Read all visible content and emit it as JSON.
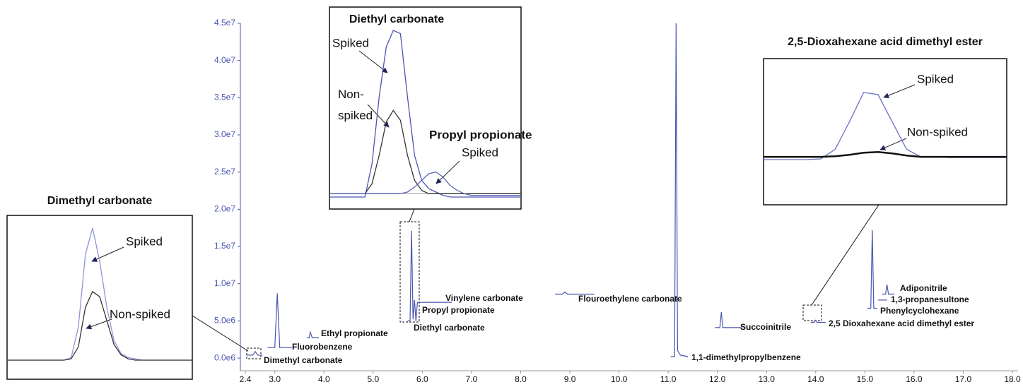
{
  "chart_data": [
    {
      "type": "line",
      "x": [
        2.42,
        2.55,
        2.6,
        2.65,
        2.75,
        2.8,
        2.85,
        3.0,
        3.05,
        3.1,
        3.35,
        3.5,
        3.65,
        3.7,
        3.72,
        3.76,
        3.9,
        4.5,
        5.7,
        5.75,
        5.78,
        5.81,
        5.84,
        5.87,
        5.9,
        6.0,
        6.6,
        7.5,
        8.7,
        8.85,
        8.9,
        8.95,
        9.5,
        10.0,
        11.05,
        11.13,
        11.16,
        11.19,
        11.25,
        11.4,
        11.8,
        11.95,
        12.05,
        12.08,
        12.11,
        12.5,
        13.0,
        13.9,
        13.97,
        14.0,
        14.03,
        14.2,
        14.6,
        15.05,
        15.12,
        15.15,
        15.18,
        15.25,
        15.26,
        15.27,
        15.45,
        15.46,
        15.35,
        15.42,
        15.45,
        15.48,
        15.6
      ],
      "series": [
        {
          "color": "#4a55b0",
          "values": [
            400000,
            400000,
            900000,
            400000,
            400000,
            null,
            1400000,
            1400000,
            8700000,
            1400000,
            1400000,
            null,
            2750000,
            2750000,
            3500000,
            2750000,
            2750000,
            null,
            5000000,
            5000000,
            17100000,
            5200000,
            7800000,
            5000000,
            7500000,
            7500000,
            7500000,
            null,
            8600000,
            8600000,
            8900000,
            8600000,
            8600000,
            null,
            200000,
            200000,
            45000000,
            1000000,
            400000,
            200000,
            null,
            4100000,
            4100000,
            6200000,
            4100000,
            4100000,
            null,
            4800000,
            4800000,
            5100000,
            4800000,
            4800000,
            null,
            6700000,
            6700000,
            17200000,
            6700000,
            6700000,
            null,
            7800000,
            7800000,
            null,
            8600000,
            8600000,
            9900000,
            8600000,
            8600000
          ]
        }
      ],
      "xlim": [
        2.4,
        18.0
      ],
      "xticks": [
        2.4,
        {
          "value": 3,
          "label": "3.0"
        },
        {
          "value": 4,
          "label": "4.0"
        },
        {
          "value": 5,
          "label": "5.0"
        },
        {
          "value": 6,
          "label": "6.0"
        },
        {
          "value": 7,
          "label": "7.0"
        },
        {
          "value": 8,
          "label": "8.0"
        },
        {
          "value": 9,
          "label": "9.0"
        },
        {
          "value": 10,
          "label": "10.0"
        },
        {
          "value": 11,
          "label": "11.0"
        },
        {
          "value": 12,
          "label": "12.0"
        },
        {
          "value": 13,
          "label": "13.0"
        },
        {
          "value": 14,
          "label": "14.0"
        },
        {
          "value": 15,
          "label": "15.0"
        },
        {
          "value": 16,
          "label": "16.0"
        },
        {
          "value": 17,
          "label": "17.0"
        },
        {
          "value": 18,
          "label": "18.0"
        }
      ],
      "ylim": [
        -1700000,
        45000000
      ],
      "yticks": [
        {
          "value": 0,
          "label": "0.0e6"
        },
        {
          "value": 5000000,
          "label": "5.0e6"
        },
        {
          "value": 10000000,
          "label": "1.0e7"
        },
        {
          "value": 15000000,
          "label": "1.5e7"
        },
        {
          "value": 20000000,
          "label": "2.0e7"
        },
        {
          "value": 25000000,
          "label": "2.5e7"
        },
        {
          "value": 30000000,
          "label": "3.0e7"
        },
        {
          "value": 35000000,
          "label": "3.5e7"
        },
        {
          "value": 40000000,
          "label": "4.0e7"
        },
        {
          "value": 45000000,
          "label": "4.5e7"
        }
      ],
      "annotations": [
        "Dimethyl carbonate",
        "Fluorobenzene",
        "Ethyl propionate",
        "Vinylene carbonate",
        "Propyl propionate",
        "Diethyl carbonate",
        "Flouroethylene carbonate",
        "1,1-dimethylpropylbenzene",
        "Succoinitrile",
        "2,5 Dioxahexane acid dimethyl ester",
        "Adiponitrile",
        "1,3-propanesultone",
        "Phenylcyclohexane"
      ]
    },
    {
      "type": "line",
      "title": "Dimethyl carbonate",
      "series": [
        {
          "name": "Spiked",
          "color": "#8e93d6",
          "values": [
            0,
            0,
            0,
            0,
            0,
            0,
            0,
            0,
            0,
            2,
            25,
            80,
            100,
            75,
            40,
            15,
            5,
            2,
            1,
            0,
            0,
            0,
            0,
            0,
            0,
            0,
            0
          ]
        },
        {
          "name": "Non-spiked",
          "color": "#333333",
          "values": [
            0,
            0,
            0,
            0,
            0,
            0,
            0,
            0,
            0,
            1,
            10,
            40,
            52,
            48,
            30,
            12,
            4,
            1,
            0,
            0,
            0,
            0,
            0,
            0,
            0,
            0,
            0
          ]
        }
      ]
    },
    {
      "type": "line",
      "title": "Diethyl carbonate",
      "annotations": [
        "Propyl propionate"
      ],
      "series": [
        {
          "name": "Spiked",
          "color": "#4a55b0",
          "values": [
            0,
            0,
            0,
            0,
            0,
            0,
            20,
            60,
            90,
            100,
            98,
            60,
            25,
            10,
            5,
            3,
            1,
            0,
            0,
            0,
            0,
            0,
            0,
            0,
            0,
            0,
            0,
            0
          ]
        },
        {
          "name": "Non-spiked",
          "color": "#333333",
          "values": [
            2,
            2,
            2,
            2,
            2,
            2,
            8,
            25,
            45,
            52,
            46,
            25,
            10,
            4,
            2,
            2,
            2,
            2,
            2,
            2,
            2,
            2,
            2,
            2,
            2,
            2,
            2,
            2
          ]
        },
        {
          "name": "Spiked",
          "color": "#5a63b8",
          "values": [
            2,
            2,
            2,
            2,
            2,
            2,
            2,
            2,
            2,
            2,
            2,
            3,
            6,
            10,
            14,
            15,
            12,
            7,
            4,
            2,
            1,
            1,
            1,
            1,
            1,
            1,
            1,
            1
          ]
        }
      ]
    },
    {
      "type": "line",
      "title": "2,5-Dioxahexane acid dimethyl ester",
      "series": [
        {
          "name": "Spiked",
          "color": "#6a72c4",
          "values": [
            0,
            0,
            0,
            0,
            1,
            15,
            55,
            98,
            95,
            55,
            15,
            4,
            4,
            3,
            3,
            3,
            3,
            3
          ]
        },
        {
          "name": "Non-spiked",
          "color": "#111111",
          "values": [
            4,
            4,
            4,
            4,
            4,
            5,
            7,
            10,
            11,
            9,
            6,
            4,
            4,
            4,
            4,
            4,
            4,
            4
          ]
        }
      ]
    }
  ]
}
